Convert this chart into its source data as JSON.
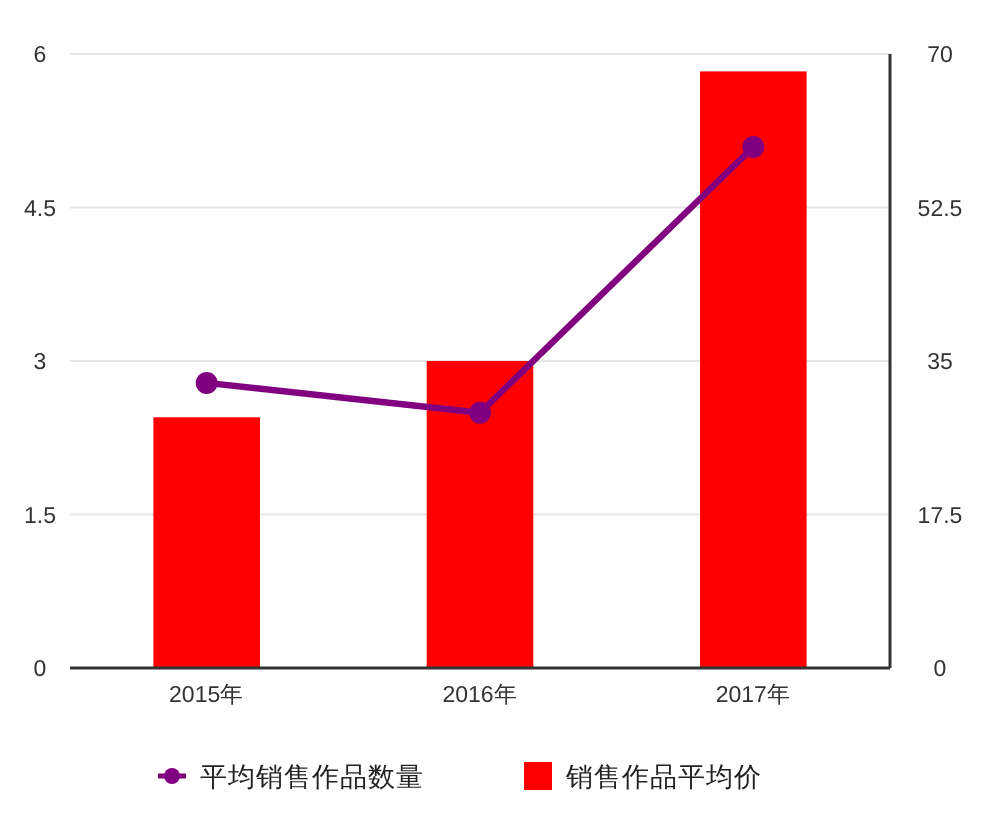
{
  "chart_data": {
    "type": "bar",
    "categories": [
      "2015年",
      "2016年",
      "2017年"
    ],
    "series": [
      {
        "name": "平均销售作品数量",
        "type": "line",
        "axis": "y2",
        "color": "#800080",
        "values": [
          32.5,
          29.1,
          59.4
        ]
      },
      {
        "name": "销售作品平均价",
        "color": "#ff0000",
        "values": [
          2.45,
          3.0,
          5.83
        ]
      }
    ],
    "ylim": [
      0,
      6
    ],
    "yticks": [
      0,
      1.5,
      3,
      4.5,
      6
    ],
    "y2lim": [
      0,
      70
    ],
    "y2ticks": [
      0,
      17.5,
      35,
      52.5,
      70
    ],
    "grid": "y",
    "legend": "bottom",
    "marker": "circle"
  }
}
